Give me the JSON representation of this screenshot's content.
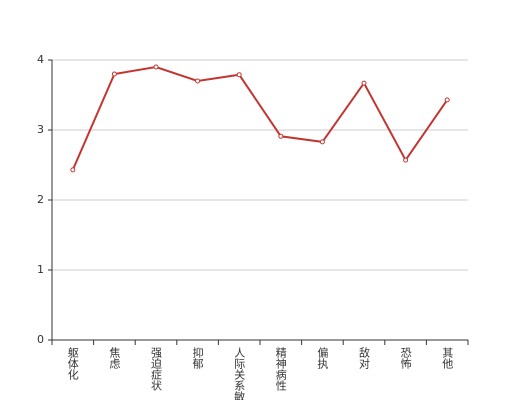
{
  "chart_data": {
    "type": "line",
    "categories": [
      "躯体化",
      "焦虑",
      "强迫症状",
      "抑郁",
      "人际关系敏感",
      "精神病性",
      "偏执",
      "敌对",
      "恐怖",
      "其他"
    ],
    "values": [
      2.43,
      3.8,
      3.9,
      3.7,
      3.79,
      2.91,
      2.83,
      3.67,
      2.57,
      3.43
    ],
    "color": "#c23531",
    "ylim": [
      0,
      4
    ],
    "yticks": [
      0,
      1,
      2,
      3,
      4
    ],
    "grid": true
  }
}
